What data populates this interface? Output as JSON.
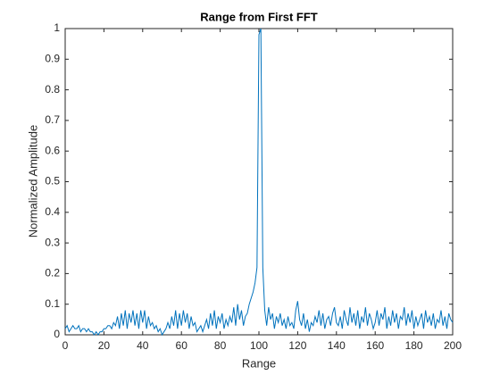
{
  "chart_data": {
    "type": "line",
    "title": "Range from First FFT",
    "x_label": "Range",
    "y_label": "Normalized Amplitude",
    "x": [
      0,
      1,
      2,
      3,
      4,
      5,
      6,
      7,
      8,
      9,
      10,
      11,
      12,
      13,
      14,
      15,
      16,
      17,
      18,
      19,
      20,
      21,
      22,
      23,
      24,
      25,
      26,
      27,
      28,
      29,
      30,
      31,
      32,
      33,
      34,
      35,
      36,
      37,
      38,
      39,
      40,
      41,
      42,
      43,
      44,
      45,
      46,
      47,
      48,
      49,
      50,
      51,
      52,
      53,
      54,
      55,
      56,
      57,
      58,
      59,
      60,
      61,
      62,
      63,
      64,
      65,
      66,
      67,
      68,
      69,
      70,
      71,
      72,
      73,
      74,
      75,
      76,
      77,
      78,
      79,
      80,
      81,
      82,
      83,
      84,
      85,
      86,
      87,
      88,
      89,
      90,
      91,
      92,
      93,
      94,
      95,
      96,
      97,
      98,
      99,
      100,
      101,
      102,
      103,
      104,
      105,
      106,
      107,
      108,
      109,
      110,
      111,
      112,
      113,
      114,
      115,
      116,
      117,
      118,
      119,
      120,
      121,
      122,
      123,
      124,
      125,
      126,
      127,
      128,
      129,
      130,
      131,
      132,
      133,
      134,
      135,
      136,
      137,
      138,
      139,
      140,
      141,
      142,
      143,
      144,
      145,
      146,
      147,
      148,
      149,
      150,
      151,
      152,
      153,
      154,
      155,
      156,
      157,
      158,
      159,
      160,
      161,
      162,
      163,
      164,
      165,
      166,
      167,
      168,
      169,
      170,
      171,
      172,
      173,
      174,
      175,
      176,
      177,
      178,
      179,
      180,
      181,
      182,
      183,
      184,
      185,
      186,
      187,
      188,
      189,
      190,
      191,
      192,
      193,
      194,
      195,
      196,
      197,
      198,
      199,
      200
    ],
    "series": [
      {
        "name": "Range",
        "color": "#0072bd",
        "values": [
          0.02,
          0.03,
          0.01,
          0.02,
          0.03,
          0.02,
          0.02,
          0.03,
          0.01,
          0.02,
          0.02,
          0.01,
          0.02,
          0.01,
          0.01,
          0.0,
          0.01,
          0.0,
          0.01,
          0.01,
          0.02,
          0.02,
          0.03,
          0.03,
          0.02,
          0.04,
          0.03,
          0.06,
          0.02,
          0.07,
          0.03,
          0.08,
          0.02,
          0.07,
          0.04,
          0.08,
          0.03,
          0.07,
          0.02,
          0.08,
          0.04,
          0.08,
          0.02,
          0.06,
          0.03,
          0.04,
          0.02,
          0.03,
          0.01,
          0.02,
          0.0,
          0.01,
          0.02,
          0.04,
          0.02,
          0.06,
          0.03,
          0.08,
          0.02,
          0.07,
          0.03,
          0.08,
          0.04,
          0.07,
          0.02,
          0.06,
          0.03,
          0.04,
          0.01,
          0.02,
          0.03,
          0.01,
          0.03,
          0.05,
          0.02,
          0.07,
          0.03,
          0.08,
          0.02,
          0.06,
          0.04,
          0.07,
          0.02,
          0.05,
          0.03,
          0.06,
          0.04,
          0.09,
          0.03,
          0.1,
          0.05,
          0.08,
          0.03,
          0.06,
          0.07,
          0.1,
          0.12,
          0.14,
          0.17,
          0.22,
          0.98,
          1.0,
          0.22,
          0.08,
          0.03,
          0.09,
          0.05,
          0.07,
          0.02,
          0.06,
          0.04,
          0.07,
          0.03,
          0.05,
          0.02,
          0.06,
          0.03,
          0.04,
          0.02,
          0.08,
          0.11,
          0.05,
          0.03,
          0.07,
          0.02,
          0.05,
          0.01,
          0.04,
          0.03,
          0.06,
          0.04,
          0.08,
          0.03,
          0.07,
          0.02,
          0.05,
          0.06,
          0.03,
          0.07,
          0.09,
          0.04,
          0.03,
          0.06,
          0.02,
          0.08,
          0.05,
          0.03,
          0.09,
          0.04,
          0.07,
          0.03,
          0.08,
          0.02,
          0.06,
          0.04,
          0.09,
          0.03,
          0.07,
          0.05,
          0.02,
          0.04,
          0.08,
          0.03,
          0.07,
          0.05,
          0.09,
          0.02,
          0.06,
          0.03,
          0.08,
          0.04,
          0.07,
          0.02,
          0.06,
          0.05,
          0.09,
          0.03,
          0.07,
          0.04,
          0.08,
          0.02,
          0.06,
          0.03,
          0.05,
          0.07,
          0.02,
          0.08,
          0.04,
          0.06,
          0.03,
          0.07,
          0.02,
          0.05,
          0.04,
          0.08,
          0.03,
          0.06,
          0.02,
          0.07,
          0.05,
          0.04
        ]
      }
    ],
    "xlim": [
      0,
      200
    ],
    "ylim": [
      0,
      1
    ],
    "xticks": [
      0,
      20,
      40,
      60,
      80,
      100,
      120,
      140,
      160,
      180,
      200
    ],
    "yticks": [
      0,
      0.1,
      0.2,
      0.3,
      0.4,
      0.5,
      0.6,
      0.7,
      0.8,
      0.9,
      1
    ]
  }
}
